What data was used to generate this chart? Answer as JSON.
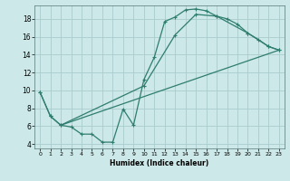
{
  "bg_color": "#cce8e8",
  "grid_color": "#aacccc",
  "line_color": "#2e7d6e",
  "xlabel": "Humidex (Indice chaleur)",
  "xlim": [
    -0.5,
    23.5
  ],
  "ylim": [
    3.5,
    19.5
  ],
  "xticks": [
    0,
    1,
    2,
    3,
    4,
    5,
    6,
    7,
    8,
    9,
    10,
    11,
    12,
    13,
    14,
    15,
    16,
    17,
    18,
    19,
    20,
    21,
    22,
    23
  ],
  "yticks": [
    4,
    6,
    8,
    10,
    12,
    14,
    16,
    18
  ],
  "line1_x": [
    0,
    1,
    2,
    3,
    4,
    5,
    6,
    7,
    8,
    9,
    10,
    11,
    12,
    13,
    14,
    15,
    16,
    17,
    18,
    19,
    20,
    21,
    22,
    23
  ],
  "line1_y": [
    9.8,
    7.1,
    6.1,
    5.9,
    5.1,
    5.1,
    4.2,
    4.2,
    7.9,
    6.1,
    11.2,
    13.7,
    17.7,
    18.2,
    19.0,
    19.1,
    18.9,
    18.3,
    18.0,
    17.4,
    16.4,
    15.7,
    14.9,
    14.5
  ],
  "line2_x": [
    0,
    1,
    2,
    10,
    13,
    15,
    17,
    20,
    22,
    23
  ],
  "line2_y": [
    9.8,
    7.1,
    6.1,
    10.5,
    16.2,
    18.5,
    18.3,
    16.4,
    14.9,
    14.5
  ],
  "line3_x": [
    2,
    23
  ],
  "line3_y": [
    6.1,
    14.5
  ]
}
